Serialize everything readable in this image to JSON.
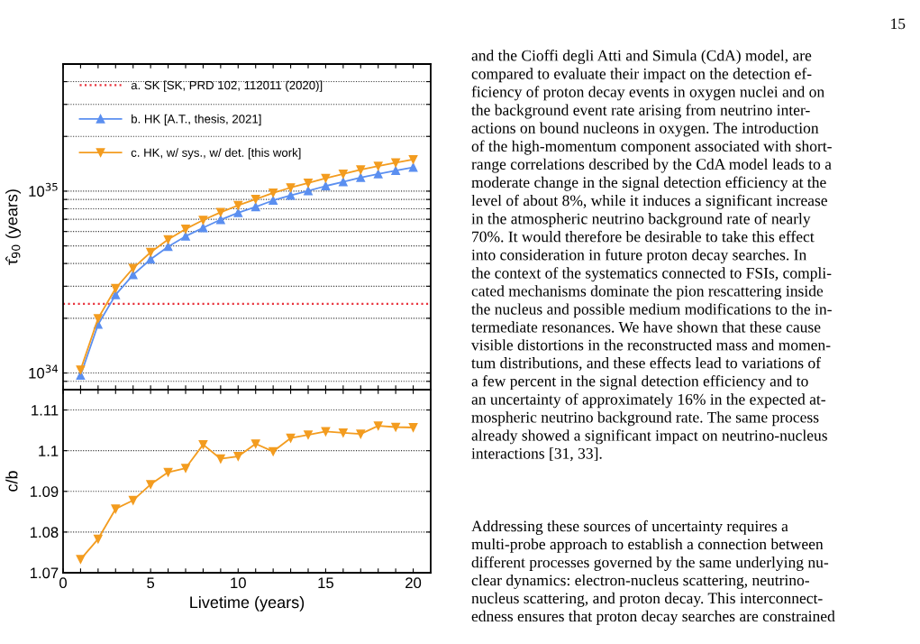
{
  "chart_data": [
    {
      "type": "line",
      "ylabel": "τ̂$_{90}$ (years)",
      "log": "y",
      "grid": "y",
      "legend": "top left",
      "tick_labels": "y",
      "x": [
        1,
        2,
        3,
        4,
        5,
        6,
        7,
        8,
        9,
        10,
        11,
        12,
        13,
        14,
        15,
        16,
        17,
        18,
        19,
        20
      ],
      "xlim": [
        0,
        21
      ],
      "xticks": [
        0,
        {
          "value": 1,
          "label": null
        },
        {
          "value": 2,
          "label": null
        },
        {
          "value": 3,
          "label": null
        },
        {
          "value": 4,
          "label": null
        },
        5,
        {
          "value": 6,
          "label": null
        },
        {
          "value": 7,
          "label": null
        },
        {
          "value": 8,
          "label": null
        },
        {
          "value": 9,
          "label": null
        },
        10,
        {
          "value": 11,
          "label": null
        },
        {
          "value": 12,
          "label": null
        },
        {
          "value": 13,
          "label": null
        },
        {
          "value": 14,
          "label": null
        },
        15,
        {
          "value": 16,
          "label": null
        },
        {
          "value": 17,
          "label": null
        },
        {
          "value": 18,
          "label": null
        },
        {
          "value": 19,
          "label": null
        },
        20
      ],
      "ylim": [
        8.1e+33,
        5e+35
      ],
      "yticks": [
        {
          "value": 9e+33,
          "label": null
        },
        {
          "value": 1e+34,
          "label": "10$^{34}$"
        },
        {
          "value": 2e+34,
          "label": null
        },
        {
          "value": 3e+34,
          "label": null
        },
        {
          "value": 4e+34,
          "label": null
        },
        {
          "value": 5e+34,
          "label": null
        },
        {
          "value": 6e+34,
          "label": null
        },
        {
          "value": 7e+34,
          "label": null
        },
        {
          "value": 8e+34,
          "label": null
        },
        {
          "value": 9e+34,
          "label": null
        },
        {
          "value": 1e+35,
          "label": "10$^{35}$"
        },
        {
          "value": 2e+35,
          "label": null
        },
        {
          "value": 3e+35,
          "label": null
        },
        {
          "value": 4e+35,
          "label": null
        }
      ],
      "ref_lines": [
        {
          "axis": "y",
          "value": 2.4e+34,
          "label": "a. SK [SK, PRD 102, 112011 (2020)]",
          "color": "#e8303a",
          "line_style": "dotted"
        }
      ],
      "series": [
        {
          "name": "b. HK [A.T., thesis, 2021]",
          "color": "#5b8ff0",
          "marker": "triangle",
          "values": [
            9.7e+33,
            1.85e+34,
            2.69e+34,
            3.47e+34,
            4.22e+34,
            4.95e+34,
            5.65e+34,
            6.29e+34,
            6.97e+34,
            7.6e+34,
            8.2e+34,
            8.89e+34,
            9.48e+34,
            1.004e+35,
            1.067e+35,
            1.125e+35,
            1.187e+35,
            1.242e+35,
            1.296e+35,
            1.351e+35
          ]
        },
        {
          "name": "c. HK, w/ sys., w/ det. [this work]",
          "color": "#f39c1f",
          "marker": "triangle-down",
          "values": [
            1.041e+34,
            1.995e+34,
            2.92e+34,
            3.77e+34,
            4.61e+34,
            5.42e+34,
            6.19e+34,
            6.93e+34,
            7.65e+34,
            8.35e+34,
            9.03e+34,
            9.78e+34,
            1.046e+35,
            1.108e+35,
            1.179e+35,
            1.242e+35,
            1.311e+35,
            1.374e+35,
            1.433e+35,
            1.494e+35
          ]
        }
      ]
    },
    {
      "type": "line",
      "xlabel": "Livetime (years)",
      "ylabel": "c/b",
      "grid": "y",
      "x": [
        1,
        2,
        3,
        4,
        5,
        6,
        7,
        8,
        9,
        10,
        11,
        12,
        13,
        14,
        15,
        16,
        17,
        18,
        19,
        20
      ],
      "xlim": [
        0,
        21
      ],
      "xticks": [
        0,
        {
          "value": 1,
          "label": null
        },
        {
          "value": 2,
          "label": null
        },
        {
          "value": 3,
          "label": null
        },
        {
          "value": 4,
          "label": null
        },
        5,
        {
          "value": 6,
          "label": null
        },
        {
          "value": 7,
          "label": null
        },
        {
          "value": 8,
          "label": null
        },
        {
          "value": 9,
          "label": null
        },
        10,
        {
          "value": 11,
          "label": null
        },
        {
          "value": 12,
          "label": null
        },
        {
          "value": 13,
          "label": null
        },
        {
          "value": 14,
          "label": null
        },
        15,
        {
          "value": 16,
          "label": null
        },
        {
          "value": 17,
          "label": null
        },
        {
          "value": 18,
          "label": null
        },
        {
          "value": 19,
          "label": null
        },
        20
      ],
      "ylim": [
        1.07,
        1.115
      ],
      "yticks": [
        1.07,
        1.08,
        1.09,
        {
          "value": 1.1,
          "label": "1.1"
        },
        1.11
      ],
      "series": [
        {
          "color": "#f39c1f",
          "marker": "triangle-down",
          "values": [
            1.0733,
            1.0783,
            1.0857,
            1.0878,
            1.0917,
            1.0947,
            1.0957,
            1.1015,
            1.098,
            1.0986,
            1.1017,
            1.0998,
            1.1031,
            1.1039,
            1.1047,
            1.1044,
            1.1041,
            1.1061,
            1.1058,
            1.1057
          ]
        }
      ]
    },
    {
      "type": "other",
      "annotations": [
        "15",
        "and the Cioffi degli Atti and Simula (CdA) model, are\ncompared to evaluate their impact on the detection ef-\nficiency of proton decay events in oxygen nuclei and on\nthe background event rate arising from neutrino inter-\nactions on bound nucleons in oxygen. The introduction\nof the high-momentum component associated with short-\nrange correlations described by the CdA model leads to a\nmoderate change in the signal detection efficiency at the\nlevel of about 8%, while it induces a significant increase\nin the atmospheric neutrino background rate of nearly\n70%. It would therefore be desirable to take this effect\ninto consideration in future proton decay searches. In\nthe context of the systematics connected to FSIs, compli-\ncated mechanisms dominate the pion rescattering inside\nthe nucleus and possible medium modifications to the in-\ntermediate resonances. We have shown that these cause\nvisible distortions in the reconstructed mass and momen-\ntum distributions, and these effects lead to variations of\na few percent in the signal detection efficiency and to\nan uncertainty of approximately 16% in the expected at-\nmospheric neutrino background rate. The same process\nalready showed a significant impact on neutrino-nucleus\ninteractions [31, 33].",
        "Addressing these sources of uncertainty requires a\nmulti-probe approach to establish a connection between\ndifferent processes governed by the same underlying nu-\nclear dynamics: electron-nucleus scattering, neutrino-\nnucleus scattering, and proton decay. This interconnect-\nedness ensures that proton decay searches are constrained"
      ]
    }
  ]
}
